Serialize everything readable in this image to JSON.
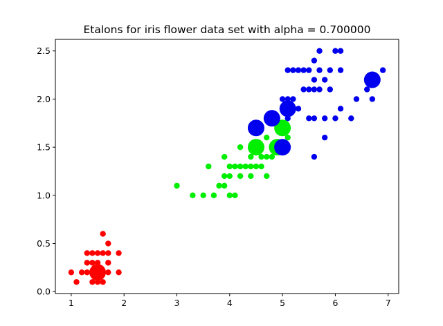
{
  "chart_data": {
    "type": "scatter",
    "title": "Etalons for iris flower data set with alpha = 0.700000",
    "xlabel": "",
    "ylabel": "",
    "xlim": [
      0.7,
      7.2
    ],
    "ylim": [
      -0.02,
      2.62
    ],
    "grid": false,
    "x_ticks": [
      1,
      2,
      3,
      4,
      5,
      6,
      7
    ],
    "x_tick_labels": [
      "1",
      "2",
      "3",
      "4",
      "5",
      "6",
      "7"
    ],
    "y_ticks": [
      0.0,
      0.5,
      1.0,
      1.5,
      2.0,
      2.5
    ],
    "y_tick_labels": [
      "0.0",
      "0.5",
      "1.0",
      "1.5",
      "2.0",
      "2.5"
    ],
    "series": [
      {
        "color": "#ff0000",
        "points": [
          [
            1.0,
            0.2
          ],
          [
            1.1,
            0.1
          ],
          [
            1.2,
            0.2
          ],
          [
            1.3,
            0.2
          ],
          [
            1.3,
            0.3
          ],
          [
            1.3,
            0.4
          ],
          [
            1.4,
            0.1
          ],
          [
            1.4,
            0.2
          ],
          [
            1.4,
            0.3
          ],
          [
            1.5,
            0.1
          ],
          [
            1.5,
            0.2
          ],
          [
            1.5,
            0.4
          ],
          [
            1.6,
            0.2
          ],
          [
            1.6,
            0.4
          ],
          [
            1.6,
            0.6
          ],
          [
            1.7,
            0.2
          ],
          [
            1.7,
            0.3
          ],
          [
            1.7,
            0.4
          ],
          [
            1.7,
            0.5
          ],
          [
            1.9,
            0.2
          ],
          [
            1.9,
            0.4
          ],
          [
            1.4,
            0.4
          ],
          [
            1.5,
            0.3
          ],
          [
            1.6,
            0.1
          ]
        ]
      },
      {
        "color": "#00ee00",
        "points": [
          [
            3.0,
            1.1
          ],
          [
            3.3,
            1.0
          ],
          [
            3.5,
            1.0
          ],
          [
            3.6,
            1.3
          ],
          [
            3.7,
            1.0
          ],
          [
            3.8,
            1.1
          ],
          [
            3.9,
            1.1
          ],
          [
            3.9,
            1.2
          ],
          [
            3.9,
            1.4
          ],
          [
            4.0,
            1.0
          ],
          [
            4.0,
            1.2
          ],
          [
            4.0,
            1.3
          ],
          [
            4.1,
            1.0
          ],
          [
            4.1,
            1.3
          ],
          [
            4.2,
            1.2
          ],
          [
            4.2,
            1.3
          ],
          [
            4.2,
            1.5
          ],
          [
            4.3,
            1.3
          ],
          [
            4.4,
            1.2
          ],
          [
            4.4,
            1.3
          ],
          [
            4.4,
            1.4
          ],
          [
            4.5,
            1.3
          ],
          [
            4.5,
            1.5
          ],
          [
            4.6,
            1.3
          ],
          [
            4.6,
            1.4
          ],
          [
            4.6,
            1.5
          ],
          [
            4.7,
            1.2
          ],
          [
            4.7,
            1.4
          ],
          [
            4.7,
            1.6
          ],
          [
            4.8,
            1.4
          ],
          [
            4.8,
            1.8
          ],
          [
            4.9,
            1.5
          ],
          [
            5.0,
            1.7
          ],
          [
            5.1,
            1.6
          ]
        ]
      },
      {
        "color": "#0000ee",
        "points": [
          [
            4.5,
            1.7
          ],
          [
            4.8,
            1.8
          ],
          [
            4.9,
            1.8
          ],
          [
            5.0,
            1.5
          ],
          [
            5.0,
            2.0
          ],
          [
            5.1,
            1.5
          ],
          [
            5.1,
            1.8
          ],
          [
            5.1,
            1.9
          ],
          [
            5.1,
            2.0
          ],
          [
            5.1,
            2.3
          ],
          [
            5.2,
            2.0
          ],
          [
            5.2,
            2.3
          ],
          [
            5.3,
            1.9
          ],
          [
            5.3,
            2.3
          ],
          [
            5.4,
            2.1
          ],
          [
            5.4,
            2.3
          ],
          [
            5.5,
            1.8
          ],
          [
            5.5,
            2.1
          ],
          [
            5.5,
            2.3
          ],
          [
            5.6,
            1.4
          ],
          [
            5.6,
            1.8
          ],
          [
            5.6,
            2.1
          ],
          [
            5.6,
            2.2
          ],
          [
            5.6,
            2.4
          ],
          [
            5.7,
            2.1
          ],
          [
            5.7,
            2.3
          ],
          [
            5.7,
            2.5
          ],
          [
            5.8,
            1.6
          ],
          [
            5.8,
            1.8
          ],
          [
            5.8,
            2.2
          ],
          [
            5.9,
            2.1
          ],
          [
            5.9,
            2.3
          ],
          [
            6.0,
            1.8
          ],
          [
            6.0,
            2.5
          ],
          [
            6.1,
            1.9
          ],
          [
            6.1,
            2.3
          ],
          [
            6.1,
            2.5
          ],
          [
            6.3,
            1.8
          ],
          [
            6.4,
            2.0
          ],
          [
            6.6,
            2.1
          ],
          [
            6.7,
            2.0
          ],
          [
            6.9,
            2.3
          ]
        ]
      }
    ],
    "etalons": [
      {
        "color": "#ff0000",
        "x": 1.5,
        "y": 0.2
      },
      {
        "color": "#00ee00",
        "x": 4.5,
        "y": 1.5
      },
      {
        "color": "#00ee00",
        "x": 4.9,
        "y": 1.5
      },
      {
        "color": "#00ee00",
        "x": 5.0,
        "y": 1.7
      },
      {
        "color": "#0000ee",
        "x": 4.5,
        "y": 1.7
      },
      {
        "color": "#0000ee",
        "x": 4.8,
        "y": 1.8
      },
      {
        "color": "#0000ee",
        "x": 5.0,
        "y": 1.5
      },
      {
        "color": "#0000ee",
        "x": 5.1,
        "y": 1.9
      },
      {
        "color": "#0000ee",
        "x": 6.7,
        "y": 2.2
      }
    ]
  }
}
